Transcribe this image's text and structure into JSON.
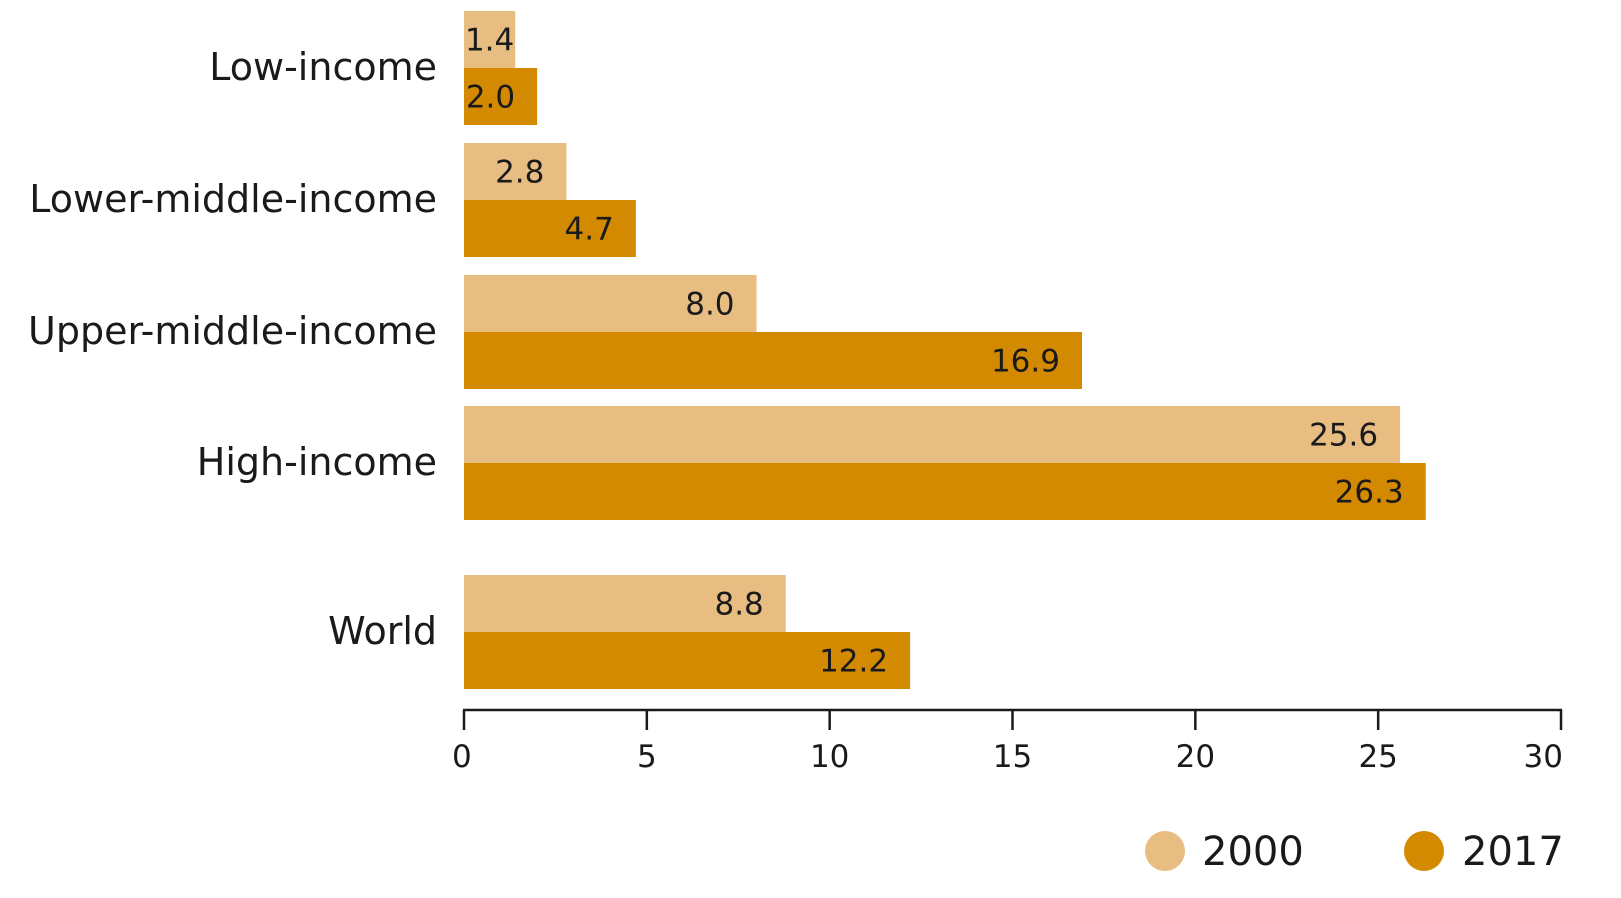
{
  "chart_data": {
    "type": "bar",
    "orientation": "horizontal",
    "categories": [
      "Low-income",
      "Lower-middle-income",
      "Upper-middle-income",
      "High-income",
      "World"
    ],
    "series": [
      {
        "name": "2000",
        "color": "#E8BD82",
        "values": [
          1.4,
          2.8,
          8.0,
          25.6,
          8.8
        ],
        "labels": [
          "1.4",
          "2.8",
          "8.0",
          "25.6",
          "8.8"
        ]
      },
      {
        "name": "2017",
        "color": "#D48A00",
        "values": [
          2.0,
          4.7,
          16.9,
          26.3,
          12.2
        ],
        "labels": [
          "2.0",
          "4.7",
          "16.9",
          "26.3",
          "12.2"
        ]
      }
    ],
    "xlim": [
      0,
      30
    ],
    "xticks": [
      0,
      5,
      10,
      15,
      20,
      25,
      30
    ],
    "xtick_labels": [
      "0",
      "5",
      "10",
      "15",
      "20",
      "25",
      "30"
    ],
    "title": "",
    "xlabel": "",
    "ylabel": "",
    "grid": false,
    "legend_position": "bottom-right"
  }
}
